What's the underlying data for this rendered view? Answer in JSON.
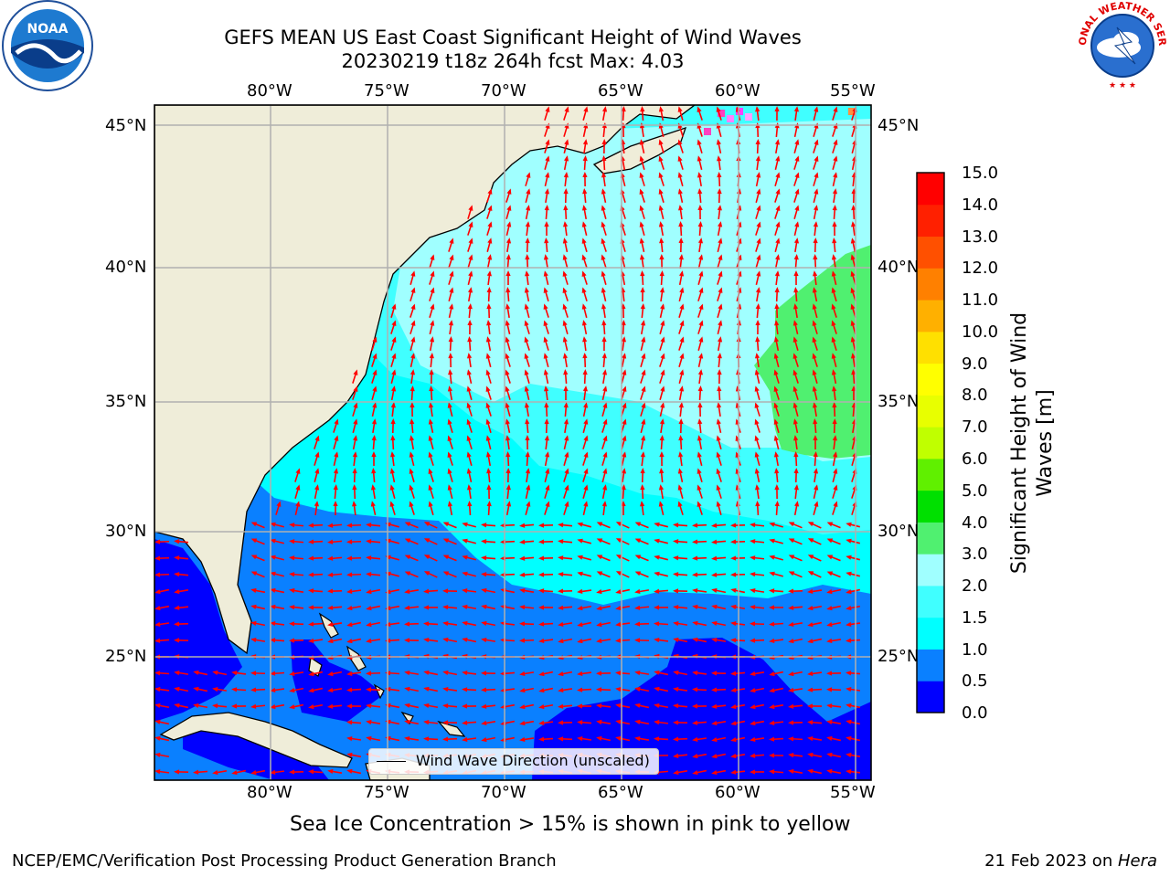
{
  "header": {
    "title_line1": "GEFS MEAN US East Coast Significant Height of Wind Waves",
    "title_line2": "20230219 t18z 264h fcst   Max: 4.03",
    "left_logo": "noaa-logo",
    "left_logo_text": "NOAA",
    "right_logo": "national-weather-service-logo",
    "right_logo_text": "NATIONAL WEATHER SERVICE"
  },
  "map": {
    "lon_labels": [
      "80°W",
      "75°W",
      "70°W",
      "65°W",
      "60°W",
      "55°W"
    ],
    "lat_labels": [
      "45°N",
      "40°N",
      "35°N",
      "30°N",
      "25°N"
    ],
    "legend_label": "Wind Wave Direction (unscaled)",
    "arrow_color": "#ff0000",
    "land_color": "#efedd9"
  },
  "colorbar": {
    "label_line1": "Significant Height of Wind",
    "label_line2": "Waves [m]",
    "ticks": [
      "0.0",
      "0.5",
      "1.0",
      "1.5",
      "2.0",
      "3.0",
      "4.0",
      "5.0",
      "6.0",
      "7.0",
      "8.0",
      "9.0",
      "10.0",
      "11.0",
      "12.0",
      "13.0",
      "14.0",
      "15.0"
    ],
    "colors": [
      "#0000ff",
      "#0a80ff",
      "#00ffff",
      "#40ffff",
      "#a0ffff",
      "#50f070",
      "#00e000",
      "#60f000",
      "#c0ff00",
      "#e8ff00",
      "#ffff00",
      "#ffe000",
      "#ffb000",
      "#ff8000",
      "#ff5000",
      "#ff2000",
      "#ff0000"
    ]
  },
  "notes": {
    "sea_ice": "Sea Ice Concentration > 15% is shown in pink to yellow"
  },
  "footer": {
    "left": "NCEP/EMC/Verification Post Processing Product Generation Branch",
    "date": "21 Feb 2023 on ",
    "host": "Hera"
  }
}
